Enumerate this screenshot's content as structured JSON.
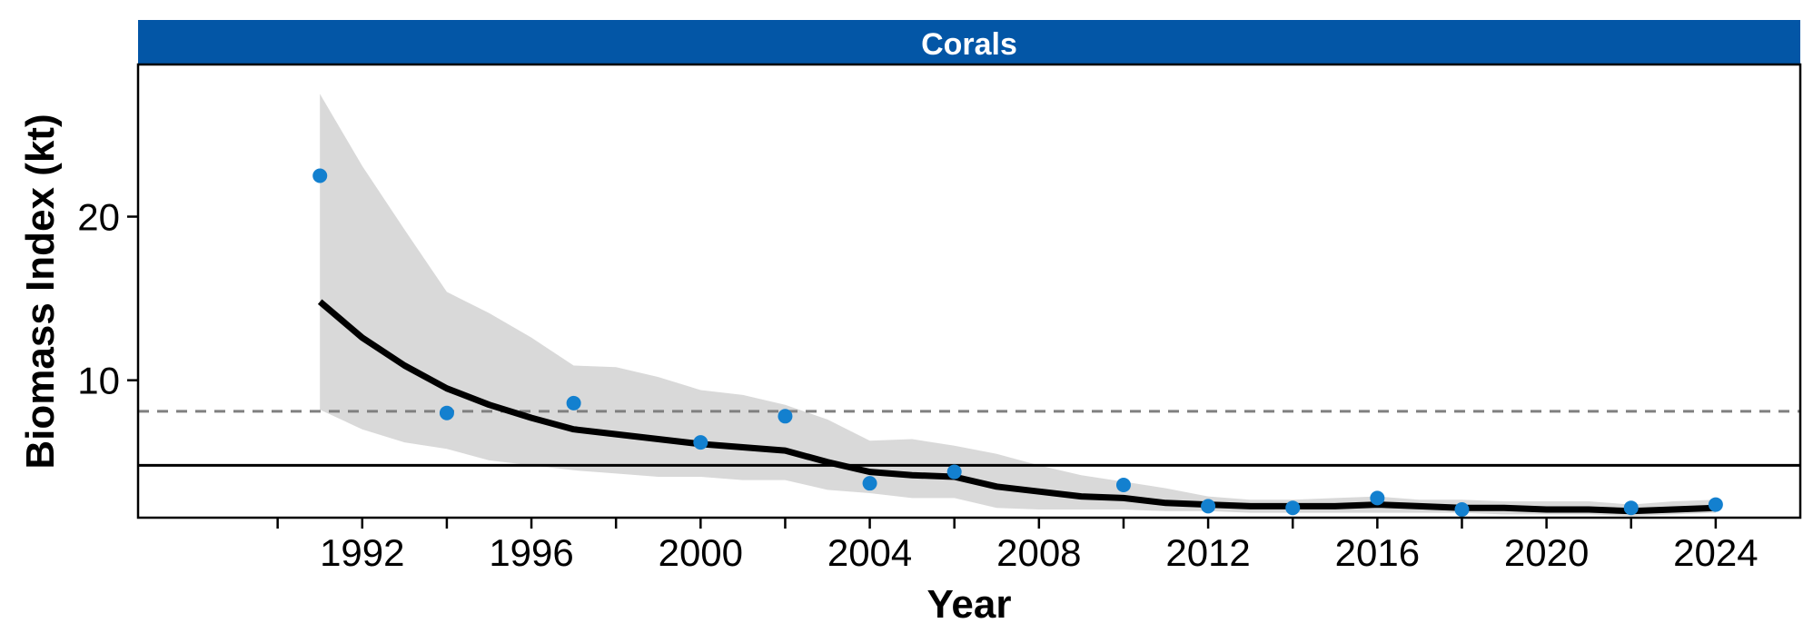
{
  "chart_data": {
    "type": "line",
    "panel_title": "Corals",
    "xlabel": "Year",
    "ylabel": "Biomass Index (kt)",
    "xlim": [
      1986.7,
      2026.0
    ],
    "ylim": [
      1.6,
      29.3
    ],
    "x_ticks": [
      1992,
      1996,
      2000,
      2004,
      2008,
      2012,
      2016,
      2020,
      2024
    ],
    "x_tick_labels": [
      "1992",
      "1996",
      "2000",
      "2004",
      "2008",
      "2012",
      "2016",
      "2020",
      "2024"
    ],
    "x_minor_ticks": [
      1990,
      1994,
      1998,
      2002,
      2006,
      2010,
      2014,
      2018,
      2022
    ],
    "y_ticks": [
      10,
      20
    ],
    "y_tick_labels": [
      "10",
      "20"
    ],
    "grid": false,
    "series": [
      {
        "kind": "points",
        "x": [
          1991,
          1994,
          1997,
          2000,
          2002,
          2004,
          2006,
          2010,
          2012,
          2014,
          2016,
          2018,
          2022,
          2024
        ],
        "y": [
          22.5,
          8.0,
          8.6,
          6.2,
          7.8,
          3.7,
          4.4,
          3.6,
          2.3,
          2.2,
          2.8,
          2.1,
          2.2,
          2.4
        ]
      },
      {
        "kind": "smooth",
        "x": [
          1991,
          1992,
          1993,
          1994,
          1995,
          1996,
          1997,
          1998,
          1999,
          2000,
          2001,
          2002,
          2003,
          2004,
          2005,
          2006,
          2007,
          2008,
          2009,
          2010,
          2011,
          2012,
          2013,
          2014,
          2015,
          2016,
          2017,
          2018,
          2019,
          2020,
          2021,
          2022,
          2023,
          2024
        ],
        "y": [
          14.8,
          12.6,
          10.9,
          9.5,
          8.5,
          7.7,
          7.0,
          6.7,
          6.4,
          6.1,
          5.9,
          5.7,
          5.0,
          4.4,
          4.2,
          4.1,
          3.5,
          3.2,
          2.9,
          2.8,
          2.5,
          2.4,
          2.3,
          2.3,
          2.3,
          2.4,
          2.3,
          2.2,
          2.2,
          2.1,
          2.1,
          2.0,
          2.1,
          2.2
        ],
        "lower": [
          8.2,
          7.0,
          6.2,
          5.8,
          5.1,
          4.8,
          4.5,
          4.3,
          4.1,
          4.1,
          3.9,
          3.9,
          3.3,
          3.1,
          2.8,
          2.8,
          2.2,
          2.1,
          2.1,
          2.1,
          2.0,
          2.0,
          1.9,
          1.9,
          1.9,
          1.9,
          1.9,
          1.9,
          1.8,
          1.8,
          1.8,
          1.7,
          1.8,
          1.9
        ],
        "upper": [
          27.5,
          23.1,
          19.2,
          15.4,
          14.1,
          12.6,
          10.9,
          10.8,
          10.2,
          9.4,
          9.1,
          8.5,
          7.6,
          6.3,
          6.4,
          6.0,
          5.5,
          4.8,
          4.2,
          3.8,
          3.4,
          2.9,
          2.7,
          2.7,
          2.8,
          2.9,
          2.7,
          2.7,
          2.6,
          2.6,
          2.6,
          2.4,
          2.6,
          2.7
        ]
      }
    ],
    "reference_lines": [
      {
        "y": 8.1,
        "style": "dashed",
        "color": "#808080"
      },
      {
        "y": 4.8,
        "style": "solid",
        "color": "#000000"
      }
    ],
    "colors": {
      "points": "#1380cf",
      "line": "#000000",
      "ribbon": "#d9d9d9",
      "strip": "#0356a6"
    }
  }
}
